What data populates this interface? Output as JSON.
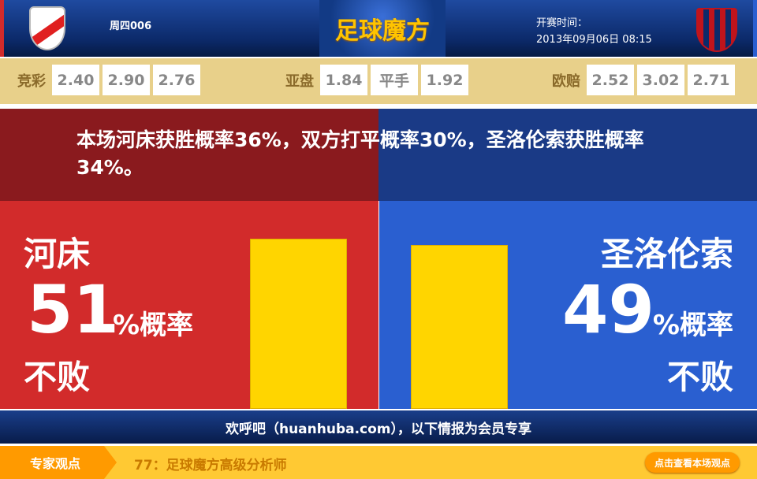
{
  "header": {
    "home_logo": "river-plate-crest",
    "away_logo": "san-lorenzo-crest",
    "match_code": "周四006",
    "brand": "足球魔方",
    "kickoff_label": "开赛时间：",
    "kickoff_time": "2013年09月06日 08:15"
  },
  "odds": [
    {
      "label": "竞彩",
      "values": [
        "2.40",
        "2.90",
        "2.76"
      ]
    },
    {
      "label": "亚盘",
      "values": [
        "1.84",
        "平手",
        "1.92"
      ]
    },
    {
      "label": "欧赔",
      "values": [
        "2.52",
        "3.02",
        "2.71"
      ]
    }
  ],
  "headline": "本场河床获胜概率36%，双方打平概率30%，圣洛伦索获胜概率34%。",
  "home": {
    "name": "河床",
    "percent": "51",
    "unit": "%概率",
    "outcome": "不败",
    "value": 51,
    "color": "#d22b2b"
  },
  "away": {
    "name": "圣洛伦索",
    "percent": "49",
    "unit": "%概率",
    "outcome": "不败",
    "value": 49,
    "color": "#2a5fd0"
  },
  "bar_color": "#ffd500",
  "banner": "欢呼吧（huanhuba.com），以下情报为会员专享",
  "expert": {
    "tag": "专家观点",
    "analyst": "77：足球魔方高级分析师",
    "button": "点击查看本场观点"
  }
}
